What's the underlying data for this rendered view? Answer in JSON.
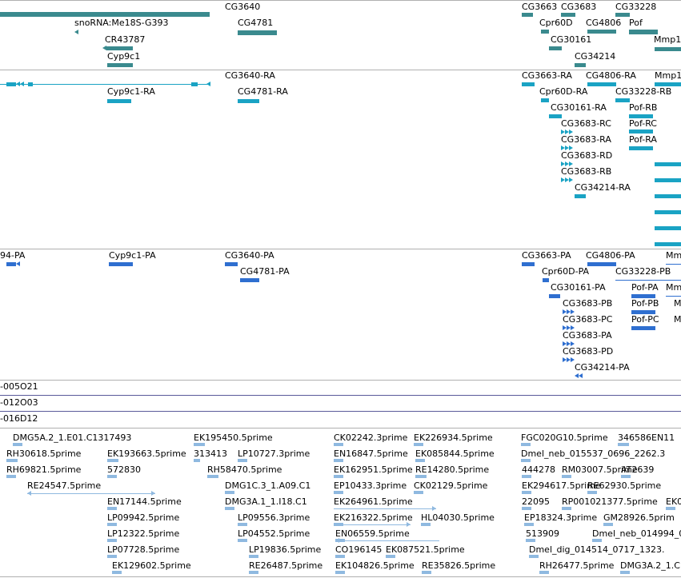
{
  "colors": {
    "gene": "#3a8a8e",
    "transcript": "#1aa3c4",
    "protein": "#2f6fd0",
    "est": "#8fb9e0",
    "separator": "#b0b0b0",
    "oligo_separator": "#5a5a9a"
  },
  "tracks": {
    "genes": [
      {
        "label": "snoRNA:Me18S-G393"
      },
      {
        "label": "CR43787"
      },
      {
        "label": "Cyp9c1"
      },
      {
        "label": "CG3640"
      },
      {
        "label": "CG4781"
      },
      {
        "label": "CG3663"
      },
      {
        "label": "CG3683"
      },
      {
        "label": "CG33228"
      },
      {
        "label": "Cpr60D"
      },
      {
        "label": "CG4806"
      },
      {
        "label": "Pof"
      },
      {
        "label": "CG30161"
      },
      {
        "label": "Mmp1"
      },
      {
        "label": "CG34214"
      }
    ],
    "transcripts": [
      {
        "label": "Cyp9c1-RA"
      },
      {
        "label": "CG3640-RA"
      },
      {
        "label": "CG4781-RA"
      },
      {
        "label": "CG3663-RA"
      },
      {
        "label": "CG4806-RA"
      },
      {
        "label": "Mmp1"
      },
      {
        "label": "Cpr60D-RA"
      },
      {
        "label": "CG33228-RB"
      },
      {
        "label": "CG30161-RA"
      },
      {
        "label": "Pof-RB"
      },
      {
        "label": "CG3683-RC"
      },
      {
        "label": "Pof-RC"
      },
      {
        "label": "CG3683-RA"
      },
      {
        "label": "Pof-RA"
      },
      {
        "label": "CG3683-RD"
      },
      {
        "label": "CG3683-RB"
      },
      {
        "label": "CG34214-RA"
      }
    ],
    "proteins": [
      {
        "label": "94-PA"
      },
      {
        "label": "Cyp9c1-PA"
      },
      {
        "label": "CG3640-PA"
      },
      {
        "label": "CG4781-PA"
      },
      {
        "label": "CG3663-PA"
      },
      {
        "label": "CG4806-PA"
      },
      {
        "label": "Mm"
      },
      {
        "label": "Cpr60D-PA"
      },
      {
        "label": "CG33228-PB"
      },
      {
        "label": "CG30161-PA"
      },
      {
        "label": "Pof-PA"
      },
      {
        "label": "Mm"
      },
      {
        "label": "CG3683-PB"
      },
      {
        "label": "Pof-PB"
      },
      {
        "label": "M"
      },
      {
        "label": "CG3683-PC"
      },
      {
        "label": "Pof-PC"
      },
      {
        "label": "M"
      },
      {
        "label": "CG3683-PA"
      },
      {
        "label": "CG3683-PD"
      },
      {
        "label": "CG34214-PA"
      }
    ],
    "oligos": [
      {
        "label": "-005O21"
      },
      {
        "label": "-012O03"
      },
      {
        "label": "-016D12"
      }
    ],
    "ests": [
      {
        "label": "DMG5A.2_1.E01.C1317493"
      },
      {
        "label": "EK195450.5prime"
      },
      {
        "label": "CK02242.3prime"
      },
      {
        "label": "EK226934.5prime"
      },
      {
        "label": "FGC020G10.5prime"
      },
      {
        "label": "346586EN11"
      },
      {
        "label": "RH30618.5prime"
      },
      {
        "label": "EK193663.5prime"
      },
      {
        "label": "313413"
      },
      {
        "label": "LP10727.3prime"
      },
      {
        "label": "EN16847.5prime"
      },
      {
        "label": "EK085844.5prime"
      },
      {
        "label": "Dmel_neb_015537_0696_2262.3"
      },
      {
        "label": "RH69821.5prime"
      },
      {
        "label": "572830"
      },
      {
        "label": "RH58470.5prime"
      },
      {
        "label": "EK162951.5prime"
      },
      {
        "label": "RE14280.5prime"
      },
      {
        "label": "444278"
      },
      {
        "label": "RM03007.5prime"
      },
      {
        "label": "AT2639"
      },
      {
        "label": "RE24547.5prime"
      },
      {
        "label": "DMG1C.3_1.A09.C1"
      },
      {
        "label": "EP10433.3prime"
      },
      {
        "label": "CK02129.5prime"
      },
      {
        "label": "EK294617.5prime"
      },
      {
        "label": "RE62930.5prime"
      },
      {
        "label": "EN17144.5prime"
      },
      {
        "label": "DMG3A.1_1.I18.C1"
      },
      {
        "label": "EK264961.5prime"
      },
      {
        "label": "22095"
      },
      {
        "label": "RP001021377.5prime"
      },
      {
        "label": "EK0"
      },
      {
        "label": "LP09942.5prime"
      },
      {
        "label": "LP09556.3prime"
      },
      {
        "label": "EK216322.5prime"
      },
      {
        "label": "HL04030.5prime"
      },
      {
        "label": "EP18324.3prime"
      },
      {
        "label": "GM28926.5prim"
      },
      {
        "label": "LP12322.5prime"
      },
      {
        "label": "LP04552.5prime"
      },
      {
        "label": "EN06559.5prime"
      },
      {
        "label": "513909"
      },
      {
        "label": "Dmel_neb_014994_062"
      },
      {
        "label": "LP07728.5prime"
      },
      {
        "label": "LP19836.5prime"
      },
      {
        "label": "CO196145"
      },
      {
        "label": "EK087521.5prime"
      },
      {
        "label": "Dmel_dig_014514_0717_1323."
      },
      {
        "label": "EK129602.5prime"
      },
      {
        "label": "RE26487.5prime"
      },
      {
        "label": "EK104826.5prime"
      },
      {
        "label": "RE35826.5prime"
      },
      {
        "label": "RH26477.5prime"
      },
      {
        "label": "DMG3A.2_1.C"
      }
    ]
  }
}
